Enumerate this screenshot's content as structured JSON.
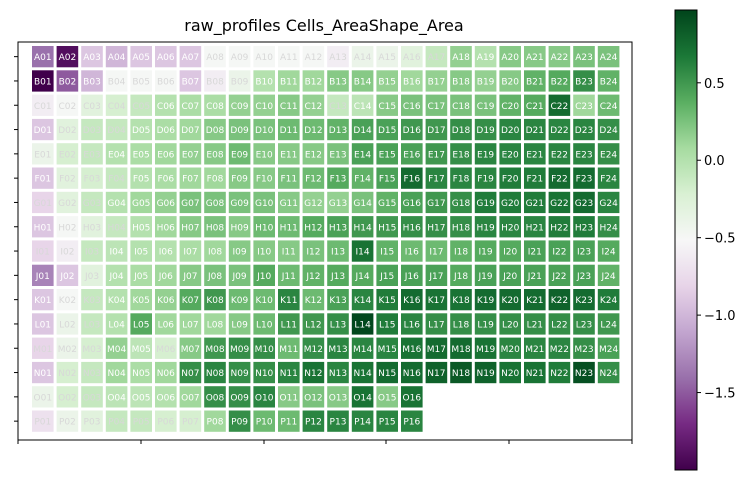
{
  "chart_data": {
    "type": "heatmap",
    "title": "raw_profiles Cells_AreaShape_Area",
    "xlabel": "",
    "ylabel": "",
    "rows": [
      "A",
      "B",
      "C",
      "D",
      "E",
      "F",
      "G",
      "H",
      "I",
      "J",
      "K",
      "L",
      "M",
      "N",
      "O",
      "P"
    ],
    "columns": [
      "01",
      "02",
      "03",
      "04",
      "05",
      "06",
      "07",
      "08",
      "09",
      "10",
      "11",
      "12",
      "13",
      "14",
      "15",
      "16",
      "17",
      "18",
      "19",
      "20",
      "21",
      "22",
      "23",
      "24"
    ],
    "values": [
      [
        -1.4,
        -1.9,
        -0.9,
        -1.0,
        -0.9,
        -0.9,
        -0.9,
        -0.5,
        -0.5,
        -0.5,
        -0.5,
        -0.5,
        -0.6,
        -0.4,
        -0.4,
        -0.3,
        -0.1,
        0.15,
        0.0,
        0.2,
        0.2,
        0.2,
        0.25,
        0.25
      ],
      [
        -2.0,
        -1.5,
        -1.0,
        -0.5,
        -0.5,
        -0.5,
        -0.9,
        -0.6,
        -0.4,
        0.0,
        0.1,
        0.1,
        0.2,
        0.2,
        0.15,
        0.1,
        0.15,
        0.2,
        0.15,
        0.2,
        0.35,
        0.4,
        0.55,
        0.35
      ],
      [
        -0.6,
        -0.5,
        -0.3,
        -0.2,
        -0.1,
        0.0,
        0.05,
        0.05,
        0.15,
        0.15,
        0.2,
        0.15,
        -0.1,
        -0.05,
        0.2,
        0.25,
        0.25,
        0.25,
        0.25,
        0.35,
        0.4,
        0.75,
        0.1,
        0.3
      ],
      [
        -0.9,
        -0.3,
        -0.1,
        -0.1,
        0.0,
        0.05,
        0.1,
        0.2,
        0.25,
        0.25,
        0.3,
        0.3,
        0.35,
        0.45,
        0.45,
        0.5,
        0.5,
        0.55,
        0.55,
        0.6,
        0.6,
        0.6,
        0.6,
        0.55
      ],
      [
        -0.4,
        -0.2,
        -0.1,
        0.0,
        0.05,
        0.1,
        0.15,
        0.2,
        0.3,
        0.2,
        0.2,
        0.2,
        0.25,
        0.45,
        0.45,
        0.45,
        0.5,
        0.55,
        0.6,
        0.6,
        0.6,
        0.6,
        0.6,
        0.55
      ],
      [
        -0.9,
        -0.3,
        -0.2,
        -0.1,
        0.0,
        0.05,
        0.1,
        0.1,
        0.2,
        0.2,
        0.25,
        0.3,
        0.4,
        0.35,
        0.45,
        0.75,
        0.6,
        0.6,
        0.6,
        0.65,
        0.65,
        0.75,
        0.75,
        0.6
      ],
      [
        -0.8,
        -0.3,
        -0.1,
        0.0,
        0.1,
        0.15,
        0.25,
        0.25,
        0.25,
        0.25,
        0.2,
        0.15,
        0.15,
        0.25,
        0.35,
        0.45,
        0.5,
        0.55,
        0.65,
        0.65,
        0.65,
        0.7,
        0.75,
        0.6
      ],
      [
        -0.9,
        -0.5,
        -0.3,
        -0.1,
        0.0,
        0.1,
        0.2,
        0.25,
        0.2,
        0.3,
        0.3,
        0.4,
        0.45,
        0.5,
        0.5,
        0.55,
        0.55,
        0.55,
        0.6,
        0.6,
        0.6,
        0.65,
        0.65,
        0.55
      ],
      [
        -0.8,
        -0.6,
        -0.1,
        -0.05,
        0.0,
        0.0,
        0.05,
        0.1,
        0.2,
        0.2,
        0.2,
        0.25,
        0.3,
        0.7,
        0.35,
        0.3,
        0.3,
        0.35,
        0.4,
        0.4,
        0.45,
        0.45,
        0.45,
        0.4
      ],
      [
        -1.3,
        -0.9,
        -0.3,
        0.0,
        0.05,
        0.1,
        0.2,
        0.25,
        0.25,
        0.4,
        0.3,
        0.35,
        0.4,
        0.4,
        0.45,
        0.45,
        0.45,
        0.4,
        0.45,
        0.45,
        0.45,
        0.45,
        0.45,
        0.35
      ],
      [
        -0.9,
        -0.5,
        -0.1,
        0.0,
        0.1,
        0.15,
        0.4,
        0.5,
        0.3,
        0.3,
        0.6,
        0.3,
        0.45,
        0.6,
        0.65,
        0.75,
        0.7,
        0.7,
        0.75,
        0.75,
        0.75,
        0.8,
        0.75,
        0.65
      ],
      [
        -0.9,
        -0.4,
        -0.1,
        0.0,
        0.4,
        0.1,
        0.1,
        0.1,
        0.2,
        0.3,
        0.5,
        0.5,
        0.55,
        0.95,
        0.65,
        0.6,
        0.55,
        0.55,
        0.55,
        0.55,
        0.55,
        0.55,
        0.55,
        0.5
      ],
      [
        -0.8,
        -0.4,
        -0.2,
        0.15,
        -0.05,
        -0.2,
        0.2,
        0.5,
        0.55,
        0.55,
        0.3,
        0.55,
        0.6,
        0.6,
        0.6,
        0.7,
        0.75,
        0.75,
        0.7,
        0.6,
        0.6,
        0.6,
        0.55,
        0.45
      ],
      [
        -0.9,
        -0.2,
        -0.1,
        0.1,
        0.05,
        0.1,
        0.55,
        0.6,
        0.55,
        0.55,
        0.6,
        0.7,
        0.6,
        0.7,
        0.75,
        0.75,
        0.8,
        0.85,
        0.8,
        0.7,
        0.7,
        0.65,
        0.9,
        0.55
      ],
      [
        -0.4,
        -0.2,
        -0.1,
        -0.05,
        -0.05,
        0.0,
        0.1,
        0.55,
        0.55,
        0.6,
        0.2,
        0.25,
        0.2,
        0.7,
        0.2,
        0.7,
        null,
        null,
        null,
        null,
        null,
        null,
        null,
        null
      ],
      [
        -0.7,
        -0.4,
        -0.3,
        -0.1,
        -0.1,
        -0.2,
        -0.2,
        0.1,
        0.55,
        0.3,
        0.3,
        0.6,
        0.6,
        0.6,
        0.6,
        0.6,
        null,
        null,
        null,
        null,
        null,
        null,
        null,
        null
      ]
    ],
    "vmin": -2.0,
    "vmax": 0.97,
    "colormap": "PRGn",
    "colorbar_ticks": [
      -1.5,
      -1.0,
      -0.5,
      0.0,
      0.5
    ],
    "colorbar_tick_labels": [
      "−1.5",
      "−1.0",
      "−0.5",
      "0.0",
      "0.5"
    ],
    "grid": false,
    "legend": "colorbar-right"
  }
}
